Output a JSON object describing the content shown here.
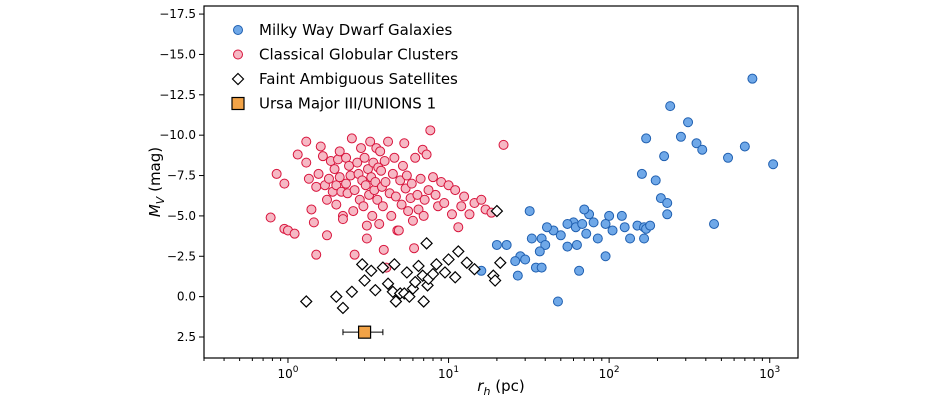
{
  "chart_data": {
    "type": "scatter",
    "xlabel": "r_h (pc)",
    "ylabel": "M_V (mag)",
    "xscale": "log",
    "xlim": [
      0.3,
      1500
    ],
    "ylim": [
      3.8,
      -18.0
    ],
    "y_inverted": true,
    "xticks": [
      {
        "value": 1,
        "base": "10",
        "exp": "0"
      },
      {
        "value": 10,
        "base": "10",
        "exp": "1"
      },
      {
        "value": 100,
        "base": "10",
        "exp": "2"
      },
      {
        "value": 1000,
        "base": "10",
        "exp": "3"
      }
    ],
    "yticks": [
      {
        "value": -17.5,
        "label": "−17.5"
      },
      {
        "value": -15.0,
        "label": "−15.0"
      },
      {
        "value": -12.5,
        "label": "−12.5"
      },
      {
        "value": -10.0,
        "label": "−10.0"
      },
      {
        "value": -7.5,
        "label": "−7.5"
      },
      {
        "value": -5.0,
        "label": "−5.0"
      },
      {
        "value": -2.5,
        "label": "−2.5"
      },
      {
        "value": 0.0,
        "label": "0.0"
      },
      {
        "value": 2.5,
        "label": "2.5"
      }
    ],
    "legend_position": "top-left",
    "series": [
      {
        "name": "Milky Way Dwarf Galaxies",
        "marker": "circle",
        "fill": "#6fa8e8",
        "stroke": "#1f5fb0",
        "points": [
          [
            780,
            -13.5
          ],
          [
            240,
            -11.8
          ],
          [
            310,
            -10.8
          ],
          [
            280,
            -9.9
          ],
          [
            350,
            -9.5
          ],
          [
            170,
            -9.8
          ],
          [
            380,
            -9.1
          ],
          [
            700,
            -9.3
          ],
          [
            220,
            -8.7
          ],
          [
            550,
            -8.6
          ],
          [
            1050,
            -8.2
          ],
          [
            160,
            -7.6
          ],
          [
            195,
            -7.2
          ],
          [
            210,
            -6.1
          ],
          [
            230,
            -5.8
          ],
          [
            230,
            -5.1
          ],
          [
            100,
            -5.0
          ],
          [
            120,
            -5.0
          ],
          [
            75,
            -5.1
          ],
          [
            70,
            -5.4
          ],
          [
            80,
            -4.6
          ],
          [
            95,
            -4.5
          ],
          [
            150,
            -4.4
          ],
          [
            165,
            -4.3
          ],
          [
            170,
            -4.2
          ],
          [
            180,
            -4.4
          ],
          [
            125,
            -4.3
          ],
          [
            105,
            -4.1
          ],
          [
            60,
            -4.6
          ],
          [
            55,
            -4.5
          ],
          [
            62,
            -4.3
          ],
          [
            45,
            -4.1
          ],
          [
            72,
            -3.9
          ],
          [
            68,
            -4.5
          ],
          [
            85,
            -3.6
          ],
          [
            50,
            -3.8
          ],
          [
            38,
            -3.6
          ],
          [
            40,
            -3.2
          ],
          [
            33,
            -3.6
          ],
          [
            37,
            -2.8
          ],
          [
            55,
            -3.1
          ],
          [
            63,
            -3.2
          ],
          [
            32,
            -5.3
          ],
          [
            41,
            -4.3
          ],
          [
            135,
            -3.6
          ],
          [
            165,
            -3.6
          ],
          [
            450,
            -4.5
          ],
          [
            95,
            -2.5
          ],
          [
            28,
            -2.5
          ],
          [
            26,
            -2.2
          ],
          [
            23,
            -3.2
          ],
          [
            20,
            -3.2
          ],
          [
            30,
            -2.3
          ],
          [
            35,
            -1.8
          ],
          [
            38,
            -1.8
          ],
          [
            16,
            -1.6
          ],
          [
            27,
            -1.3
          ],
          [
            65,
            -1.6
          ],
          [
            48,
            0.3
          ]
        ]
      },
      {
        "name": "Classical Globular Clusters",
        "marker": "circle",
        "fill": "#f6b8c4",
        "stroke": "#d8143c",
        "points": [
          [
            0.78,
            -4.9
          ],
          [
            0.85,
            -7.6
          ],
          [
            0.95,
            -7.0
          ],
          [
            0.95,
            -4.2
          ],
          [
            1.0,
            -4.1
          ],
          [
            1.1,
            -3.9
          ],
          [
            1.15,
            -8.8
          ],
          [
            1.3,
            -8.3
          ],
          [
            1.3,
            -9.6
          ],
          [
            1.35,
            -7.3
          ],
          [
            1.4,
            -5.4
          ],
          [
            1.45,
            -4.6
          ],
          [
            1.5,
            -6.8
          ],
          [
            1.55,
            -7.6
          ],
          [
            1.5,
            -2.6
          ],
          [
            1.6,
            -9.3
          ],
          [
            1.65,
            -8.7
          ],
          [
            1.7,
            -6.9
          ],
          [
            1.75,
            -6.0
          ],
          [
            1.75,
            -3.8
          ],
          [
            1.8,
            -7.3
          ],
          [
            1.85,
            -8.4
          ],
          [
            1.9,
            -6.5
          ],
          [
            1.95,
            -7.9
          ],
          [
            2.0,
            -6.9
          ],
          [
            2.0,
            -5.7
          ],
          [
            2.05,
            -8.5
          ],
          [
            2.1,
            -7.4
          ],
          [
            2.1,
            -9.0
          ],
          [
            2.15,
            -6.5
          ],
          [
            2.2,
            -5.0
          ],
          [
            2.2,
            -4.8
          ],
          [
            2.3,
            -8.6
          ],
          [
            2.3,
            -7.0
          ],
          [
            2.35,
            -6.4
          ],
          [
            2.4,
            -8.1
          ],
          [
            2.45,
            -7.5
          ],
          [
            2.5,
            -9.8
          ],
          [
            2.55,
            -5.3
          ],
          [
            2.6,
            -6.6
          ],
          [
            2.6,
            -2.6
          ],
          [
            2.7,
            -8.3
          ],
          [
            2.75,
            -7.6
          ],
          [
            2.8,
            -6.0
          ],
          [
            2.85,
            -9.2
          ],
          [
            2.9,
            -7.2
          ],
          [
            2.95,
            -5.6
          ],
          [
            3.0,
            -8.6
          ],
          [
            3.05,
            -6.9
          ],
          [
            3.1,
            -4.4
          ],
          [
            3.1,
            -3.6
          ],
          [
            3.15,
            -7.9
          ],
          [
            3.2,
            -6.3
          ],
          [
            3.25,
            -9.6
          ],
          [
            3.3,
            -7.4
          ],
          [
            3.35,
            -5.0
          ],
          [
            3.4,
            -8.3
          ],
          [
            3.45,
            -6.6
          ],
          [
            3.5,
            -7.1
          ],
          [
            3.55,
            -9.2
          ],
          [
            3.6,
            -6.0
          ],
          [
            3.65,
            -8.0
          ],
          [
            3.7,
            -4.5
          ],
          [
            3.75,
            -9.0
          ],
          [
            3.8,
            -7.8
          ],
          [
            3.85,
            -6.8
          ],
          [
            3.9,
            -5.6
          ],
          [
            3.95,
            -2.9
          ],
          [
            4.0,
            -8.4
          ],
          [
            4.05,
            -7.1
          ],
          [
            4.1,
            -1.8
          ],
          [
            4.2,
            -9.6
          ],
          [
            4.3,
            -6.4
          ],
          [
            4.4,
            -5.0
          ],
          [
            4.5,
            -7.6
          ],
          [
            4.6,
            -8.6
          ],
          [
            4.7,
            -6.2
          ],
          [
            4.8,
            -4.1
          ],
          [
            4.9,
            -4.1
          ],
          [
            5.0,
            -7.2
          ],
          [
            5.1,
            -5.7
          ],
          [
            5.2,
            -8.1
          ],
          [
            5.3,
            -9.5
          ],
          [
            5.4,
            -6.7
          ],
          [
            5.5,
            -7.5
          ],
          [
            5.6,
            -5.3
          ],
          [
            5.8,
            -6.1
          ],
          [
            5.9,
            -7.0
          ],
          [
            6.0,
            -4.7
          ],
          [
            6.1,
            -3.0
          ],
          [
            6.2,
            -8.6
          ],
          [
            6.4,
            -6.3
          ],
          [
            6.5,
            -5.4
          ],
          [
            6.7,
            -7.3
          ],
          [
            6.9,
            -9.1
          ],
          [
            7.0,
            -5.0
          ],
          [
            7.1,
            -6.0
          ],
          [
            7.3,
            -8.8
          ],
          [
            7.5,
            -6.6
          ],
          [
            7.7,
            -10.3
          ],
          [
            8.0,
            -7.4
          ],
          [
            8.3,
            -6.3
          ],
          [
            8.6,
            -5.6
          ],
          [
            9.0,
            -7.1
          ],
          [
            9.4,
            -5.8
          ],
          [
            10.0,
            -6.9
          ],
          [
            10.5,
            -5.1
          ],
          [
            11.0,
            -6.6
          ],
          [
            11.5,
            -4.3
          ],
          [
            12.0,
            -5.6
          ],
          [
            12.5,
            -6.2
          ],
          [
            13.5,
            -5.1
          ],
          [
            14.5,
            -5.8
          ],
          [
            16.0,
            -6.0
          ],
          [
            17.0,
            -5.4
          ],
          [
            18.5,
            -5.2
          ],
          [
            22.0,
            -9.4
          ]
        ]
      },
      {
        "name": "Faint Ambiguous Satellites",
        "marker": "diamond",
        "fill": "#ffffff",
        "stroke": "#000000",
        "points": [
          [
            1.3,
            0.3
          ],
          [
            2.0,
            0.0
          ],
          [
            2.2,
            0.7
          ],
          [
            2.5,
            -0.3
          ],
          [
            2.9,
            -2.0
          ],
          [
            3.0,
            -1.0
          ],
          [
            3.3,
            -1.6
          ],
          [
            3.5,
            -0.4
          ],
          [
            3.9,
            -1.8
          ],
          [
            4.2,
            -0.8
          ],
          [
            4.5,
            -0.3
          ],
          [
            4.6,
            -2.0
          ],
          [
            4.7,
            0.3
          ],
          [
            5.0,
            -0.2
          ],
          [
            5.3,
            -0.2
          ],
          [
            5.5,
            -1.5
          ],
          [
            5.7,
            0.0
          ],
          [
            6.0,
            -0.5
          ],
          [
            6.2,
            -0.9
          ],
          [
            6.5,
            -1.9
          ],
          [
            6.9,
            -1.3
          ],
          [
            7.0,
            0.3
          ],
          [
            7.4,
            -0.7
          ],
          [
            7.3,
            -3.3
          ],
          [
            7.5,
            -1.1
          ],
          [
            8.0,
            -1.4
          ],
          [
            8.4,
            -2.0
          ],
          [
            9.5,
            -1.5
          ],
          [
            10.0,
            -2.3
          ],
          [
            11.0,
            -1.2
          ],
          [
            11.5,
            -2.8
          ],
          [
            13.0,
            -2.1
          ],
          [
            14.5,
            -1.7
          ],
          [
            19.0,
            -1.3
          ],
          [
            19.5,
            -1.0
          ],
          [
            20.0,
            -5.3
          ],
          [
            21.0,
            -2.1
          ]
        ]
      },
      {
        "name": "Ursa Major III/UNIONS 1",
        "marker": "square",
        "fill": "#f2a347",
        "stroke": "#000000",
        "points": [
          [
            3.0,
            2.2
          ]
        ],
        "xerr": [
          [
            2.2,
            3.9
          ]
        ]
      }
    ]
  }
}
